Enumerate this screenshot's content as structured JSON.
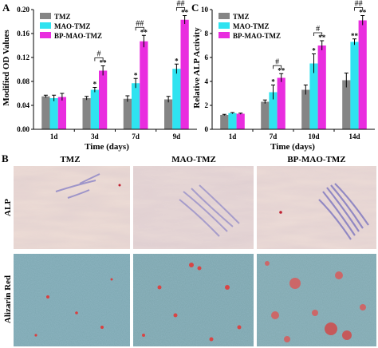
{
  "panel_labels": {
    "a": "A",
    "b": "B",
    "c": "C"
  },
  "colors": {
    "TMZ": "#858585",
    "MAO-TMZ": "#2fe3f0",
    "BP-MAO-TMZ": "#e92ddf"
  },
  "micro": {
    "column_labels": [
      "TMZ",
      "MAO-TMZ",
      "BP-MAO-TMZ"
    ],
    "row_labels": [
      "ALP",
      "Alizarin Red"
    ]
  },
  "chart_data": [
    {
      "type": "bar",
      "panel": "A",
      "categories": [
        "1d",
        "3d",
        "7d",
        "9d"
      ],
      "xlabel": "Time (days)",
      "ylabel": "Modified OD Values",
      "ylim": [
        0,
        0.2
      ],
      "yticks": [
        "0.00",
        "0.04",
        "0.08",
        "0.12",
        "0.16",
        "0.20"
      ],
      "legend": "top-left",
      "series": [
        {
          "name": "TMZ",
          "values": [
            0.055,
            0.052,
            0.051,
            0.05
          ],
          "errors": [
            0.002,
            0.003,
            0.005,
            0.005
          ]
        },
        {
          "name": "MAO-TMZ",
          "values": [
            0.052,
            0.066,
            0.077,
            0.101
          ],
          "errors": [
            0.005,
            0.004,
            0.008,
            0.008
          ]
        },
        {
          "name": "BP-MAO-TMZ",
          "values": [
            0.054,
            0.098,
            0.147,
            0.183
          ],
          "errors": [
            0.006,
            0.008,
            0.01,
            0.007
          ]
        }
      ],
      "annotations": [
        {
          "category": 1,
          "series": 1,
          "text": "*"
        },
        {
          "category": 1,
          "series": 2,
          "text": "**"
        },
        {
          "category": 2,
          "series": 1,
          "text": "*"
        },
        {
          "category": 2,
          "series": 2,
          "text": "**"
        },
        {
          "category": 3,
          "series": 1,
          "text": "*"
        },
        {
          "category": 3,
          "series": 2,
          "text": "**"
        }
      ],
      "brackets": [
        {
          "category": 1,
          "from": 1,
          "to": 2,
          "text": "#"
        },
        {
          "category": 2,
          "from": 1,
          "to": 2,
          "text": "##"
        },
        {
          "category": 3,
          "from": 1,
          "to": 2,
          "text": "##"
        }
      ]
    },
    {
      "type": "bar",
      "panel": "C",
      "categories": [
        "1d",
        "7d",
        "10d",
        "14d"
      ],
      "xlabel": "Time (days)",
      "ylabel": "Relative ALP Activity",
      "ylim": [
        0,
        10
      ],
      "yticks": [
        "0",
        "2",
        "4",
        "6",
        "8",
        "10"
      ],
      "legend": "top-left",
      "series": [
        {
          "name": "TMZ",
          "values": [
            1.2,
            2.3,
            3.3,
            4.1
          ],
          "errors": [
            0.05,
            0.15,
            0.4,
            0.6
          ]
        },
        {
          "name": "MAO-TMZ",
          "values": [
            1.35,
            3.1,
            5.5,
            7.3
          ],
          "errors": [
            0.05,
            0.6,
            0.8,
            0.25
          ]
        },
        {
          "name": "BP-MAO-TMZ",
          "values": [
            1.3,
            4.3,
            7.0,
            9.1
          ],
          "errors": [
            0.05,
            0.35,
            0.4,
            0.4
          ]
        }
      ],
      "annotations": [
        {
          "category": 1,
          "series": 1,
          "text": "*"
        },
        {
          "category": 1,
          "series": 2,
          "text": "**"
        },
        {
          "category": 2,
          "series": 1,
          "text": "*"
        },
        {
          "category": 2,
          "series": 2,
          "text": "**"
        },
        {
          "category": 3,
          "series": 1,
          "text": "**"
        },
        {
          "category": 3,
          "series": 2,
          "text": "**"
        }
      ],
      "brackets": [
        {
          "category": 1,
          "from": 1,
          "to": 2,
          "text": "#"
        },
        {
          "category": 2,
          "from": 1,
          "to": 2,
          "text": "#"
        },
        {
          "category": 3,
          "from": 1,
          "to": 2,
          "text": "##"
        }
      ]
    }
  ]
}
